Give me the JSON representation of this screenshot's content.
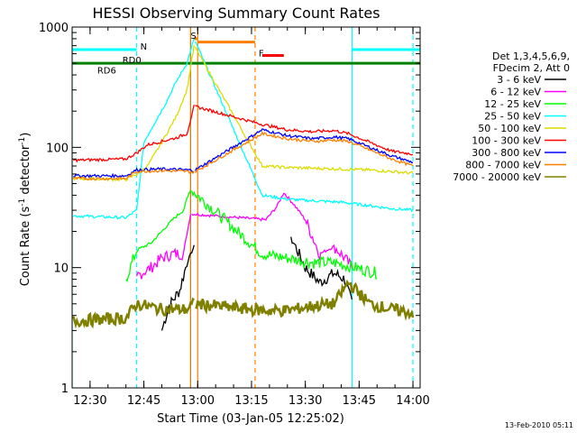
{
  "chart_data": {
    "type": "line",
    "title": "HESSI Observing Summary Count Rates",
    "xlabel": "Start Time (03-Jan-05 12:25:02)",
    "ylabel_main": "Count Rate (s",
    "ylabel_sup1": "-1",
    "ylabel_mid": " detector",
    "ylabel_sup2": "-1",
    "ylabel_end": ")",
    "footer": "13-Feb-2010 05:11",
    "y_scale": "log",
    "ylim": [
      1,
      1000
    ],
    "xlim_minutes": [
      "12:25",
      "14:02"
    ],
    "x_ticks": [
      "12:30",
      "12:45",
      "13:00",
      "13:15",
      "13:30",
      "13:45",
      "14:00"
    ],
    "y_ticks": [
      "1",
      "10",
      "100",
      "1000"
    ],
    "legend_header": [
      "Det 1,3,4,5,6,9,",
      "FDecim 2, Att 0"
    ],
    "legend_placement": "right",
    "series": [
      {
        "name": "3 - 6 keV",
        "color": "#000000",
        "x": [
          "12:39",
          "12:50",
          "12:52",
          "12:55",
          "12:57",
          "12:59",
          "13:23",
          "13:26",
          "13:30",
          "13:34",
          "13:38",
          "13:41",
          "13:43"
        ],
        "values": [
          null,
          3.0,
          4.8,
          6.5,
          11,
          15,
          null,
          18,
          10,
          7.5,
          9,
          8,
          5
        ]
      },
      {
        "name": "6 - 12 keV",
        "color": "#ff00ff",
        "x": [
          "12:43",
          "12:47",
          "12:50",
          "12:53",
          "12:56",
          "12:58",
          "13:19",
          "13:22",
          "13:24",
          "13:27",
          "13:30",
          "13:34",
          "13:38",
          "13:41",
          "13:43"
        ],
        "values": [
          8.5,
          10,
          12,
          13,
          13,
          28,
          25,
          32,
          42,
          33,
          25,
          13,
          15,
          12,
          10
        ]
      },
      {
        "name": "12 - 25 keV",
        "color": "#00ff00",
        "x": [
          "12:40",
          "12:43",
          "12:47",
          "12:50",
          "12:53",
          "12:56",
          "12:58",
          "13:18",
          "13:25",
          "13:32",
          "13:38",
          "13:44",
          "13:50"
        ],
        "values": [
          8,
          14,
          16,
          20,
          25,
          30,
          45,
          13,
          12,
          11,
          11,
          10,
          9
        ]
      },
      {
        "name": "25 - 50 keV",
        "color": "#00ffff",
        "x": [
          "12:25",
          "12:40",
          "12:43",
          "12:45",
          "12:48",
          "12:51",
          "12:54",
          "12:57",
          "12:59",
          "13:18",
          "13:25",
          "13:32",
          "13:40",
          "13:47",
          "13:54",
          "14:00"
        ],
        "values": [
          27,
          26,
          30,
          110,
          160,
          230,
          350,
          500,
          800,
          40,
          37,
          36,
          35,
          33,
          31,
          30
        ]
      },
      {
        "name": "50 - 100 keV",
        "color": "#dcdc00",
        "x": [
          "12:25",
          "12:40",
          "12:43",
          "12:46",
          "12:50",
          "12:54",
          "12:57",
          "12:59",
          "13:18",
          "13:25",
          "13:32",
          "13:40",
          "13:47",
          "13:54",
          "14:00"
        ],
        "values": [
          55,
          54,
          60,
          70,
          110,
          180,
          300,
          700,
          70,
          68,
          67,
          66,
          65,
          63,
          61
        ]
      },
      {
        "name": "100 - 300 keV",
        "color": "#ff0000",
        "x": [
          "12:25",
          "12:40",
          "12:43",
          "12:46",
          "12:50",
          "12:54",
          "12:57",
          "12:59",
          "13:18",
          "13:25",
          "13:32",
          "13:38",
          "13:42",
          "13:48",
          "13:54",
          "14:00"
        ],
        "values": [
          78,
          80,
          90,
          105,
          112,
          120,
          130,
          220,
          155,
          140,
          135,
          138,
          130,
          110,
          93,
          88
        ]
      },
      {
        "name": "300 - 800 keV",
        "color": "#0000ff",
        "x": [
          "12:25",
          "12:40",
          "12:43",
          "12:50",
          "12:57",
          "12:59",
          "13:18",
          "13:25",
          "13:32",
          "13:38",
          "13:42",
          "13:48",
          "13:54",
          "14:00"
        ],
        "values": [
          58,
          58,
          65,
          66,
          65,
          64,
          140,
          125,
          118,
          122,
          118,
          100,
          85,
          75
        ]
      },
      {
        "name": "800 - 7000 keV",
        "color": "#ff8000",
        "x": [
          "12:25",
          "12:40",
          "12:43",
          "12:50",
          "12:57",
          "12:59",
          "13:18",
          "13:25",
          "13:32",
          "13:38",
          "13:42",
          "13:48",
          "13:54",
          "14:00"
        ],
        "values": [
          55,
          55,
          63,
          64,
          63,
          62,
          130,
          118,
          112,
          115,
          112,
          95,
          80,
          70
        ]
      },
      {
        "name": "7000 - 20000 keV",
        "color": "#808000",
        "x": [
          "12:25",
          "12:40",
          "12:43",
          "12:50",
          "12:57",
          "12:59",
          "13:18",
          "13:25",
          "13:32",
          "13:38",
          "13:42",
          "13:48",
          "13:54",
          "14:00"
        ],
        "values": [
          3.6,
          3.8,
          5,
          4.5,
          4.5,
          5,
          4.4,
          4.4,
          4.8,
          5,
          7.5,
          5,
          4.5,
          4.2
        ]
      }
    ],
    "annotations": [
      {
        "label": "N",
        "color": "#00ffff",
        "x": [
          "12:25",
          "12:43"
        ],
        "level": 650
      },
      {
        "label": "",
        "color": "#00ffff",
        "x": [
          "13:43",
          "14:02"
        ],
        "level": 650
      },
      {
        "label": "RD0",
        "color": "#008000",
        "x": [
          "12:25",
          "14:02"
        ],
        "level": 500
      },
      {
        "label": "RD6",
        "color": "#008000",
        "x": null,
        "level": 500
      },
      {
        "label": "S",
        "color": "#ff8000",
        "x": [
          "12:59",
          "13:00"
        ],
        "level": 800
      },
      {
        "label": "",
        "color": "#ff8000",
        "x": [
          "13:00",
          "13:16"
        ],
        "level": 750
      },
      {
        "label": "F",
        "color": "#ff0000",
        "x": [
          "13:18",
          "13:24"
        ],
        "level": 580
      }
    ],
    "vlines": [
      {
        "x": "12:43",
        "color": "#00ffff",
        "style": "dashed"
      },
      {
        "x": "12:58",
        "color": "#c87800",
        "style": "solid"
      },
      {
        "x": "13:00",
        "color": "#ff8000",
        "style": "solid"
      },
      {
        "x": "13:16",
        "color": "#ff8000",
        "style": "dashed"
      },
      {
        "x": "13:43",
        "color": "#00ffff",
        "style": "solid"
      },
      {
        "x": "14:00",
        "color": "#00ffff",
        "style": "dashed"
      },
      {
        "x": "12:25",
        "color": "#00ffff",
        "style": "solid"
      }
    ],
    "grid": false
  }
}
